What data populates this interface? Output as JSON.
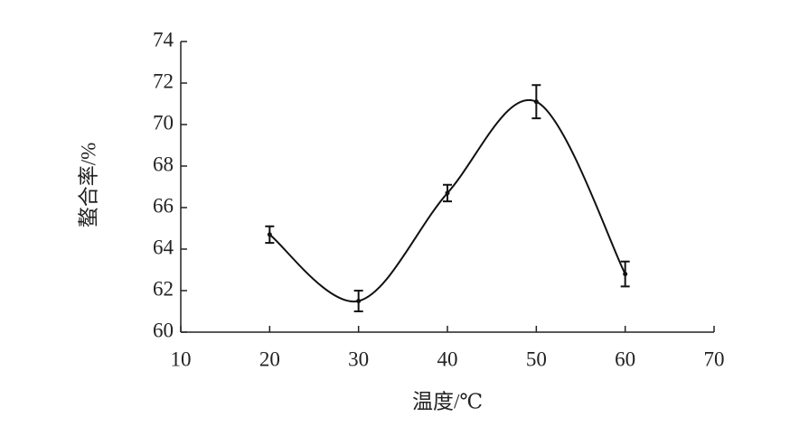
{
  "chart_data": {
    "type": "line",
    "x_label": "温度/℃",
    "y_label": "螯合率/%",
    "x": [
      20,
      30,
      40,
      50,
      60
    ],
    "values": [
      64.7,
      61.5,
      66.7,
      71.1,
      62.8
    ],
    "errors": [
      0.4,
      0.5,
      0.4,
      0.8,
      0.6
    ],
    "color": "#111111",
    "xlim": [
      10,
      70
    ],
    "xticks": [
      10,
      20,
      30,
      40,
      50,
      60,
      70
    ],
    "ylim": [
      60,
      74
    ],
    "yticks": [
      60,
      62,
      64,
      66,
      68,
      70,
      72,
      74
    ]
  }
}
